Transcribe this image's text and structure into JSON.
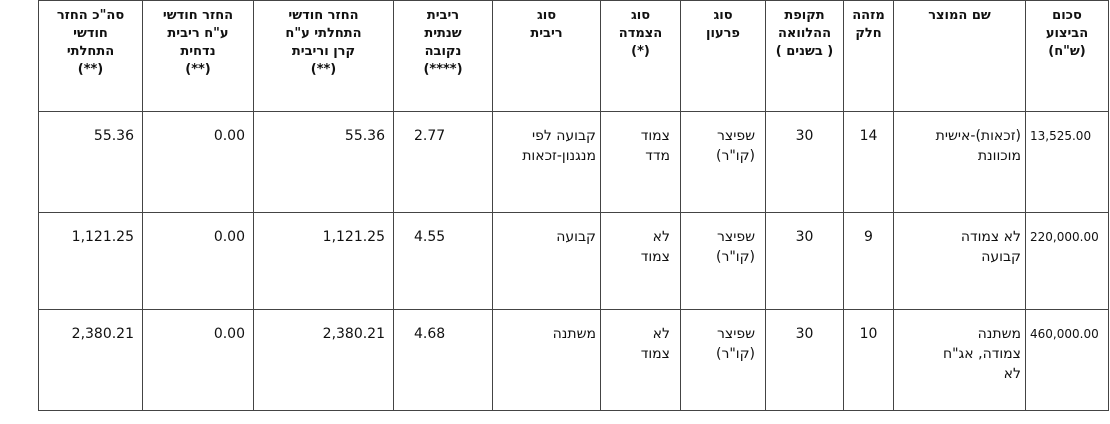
{
  "table": {
    "headers": [
      "סכום\nהביצוע\n(ש\"ח)",
      "שם המוצר",
      "מזהה\nחלק",
      "תקופת\nההלוואה\n( בשנים )",
      "סוג\nפרעון",
      "סוג\nהצמדה\n(*)",
      "סוג\nריבית",
      "ריבית\nשנתית\nנקובה\n(****)",
      "החזר חודשי\nהתחלתי ע\"ח\nקרן וריבית\n(**)",
      "החזר חודשי\nע\"ח ריבית\nנדחית\n(**)",
      "סה\"כ החזר\nחודשי\nהתחלתי\n(**)"
    ],
    "rows": [
      [
        "13,525.00",
        "(זכאות)-אישית\nמוכוונת",
        "14",
        "30",
        "שפיצר\n(קו\"ר)",
        "צמוד\nמדד",
        "קבועה לפי\nמנגנון-זכאות",
        "2.77",
        "55.36",
        "0.00",
        "55.36"
      ],
      [
        "220,000.00",
        "לא צמודה\nקבועה",
        "9",
        "30",
        "שפיצר\n(קו\"ר)",
        "לא\nצמוד",
        "קבועה",
        "4.55",
        "1,121.25",
        "0.00",
        "1,121.25"
      ],
      [
        "460,000.00",
        "משתנה\nצמודה, אג\"ח\nלא",
        "10",
        "30",
        "שפיצר\n(קו\"ר)",
        "לא\nצמוד",
        "משתנה",
        "4.68",
        "2,380.21",
        "0.00",
        "2,380.21"
      ]
    ]
  }
}
